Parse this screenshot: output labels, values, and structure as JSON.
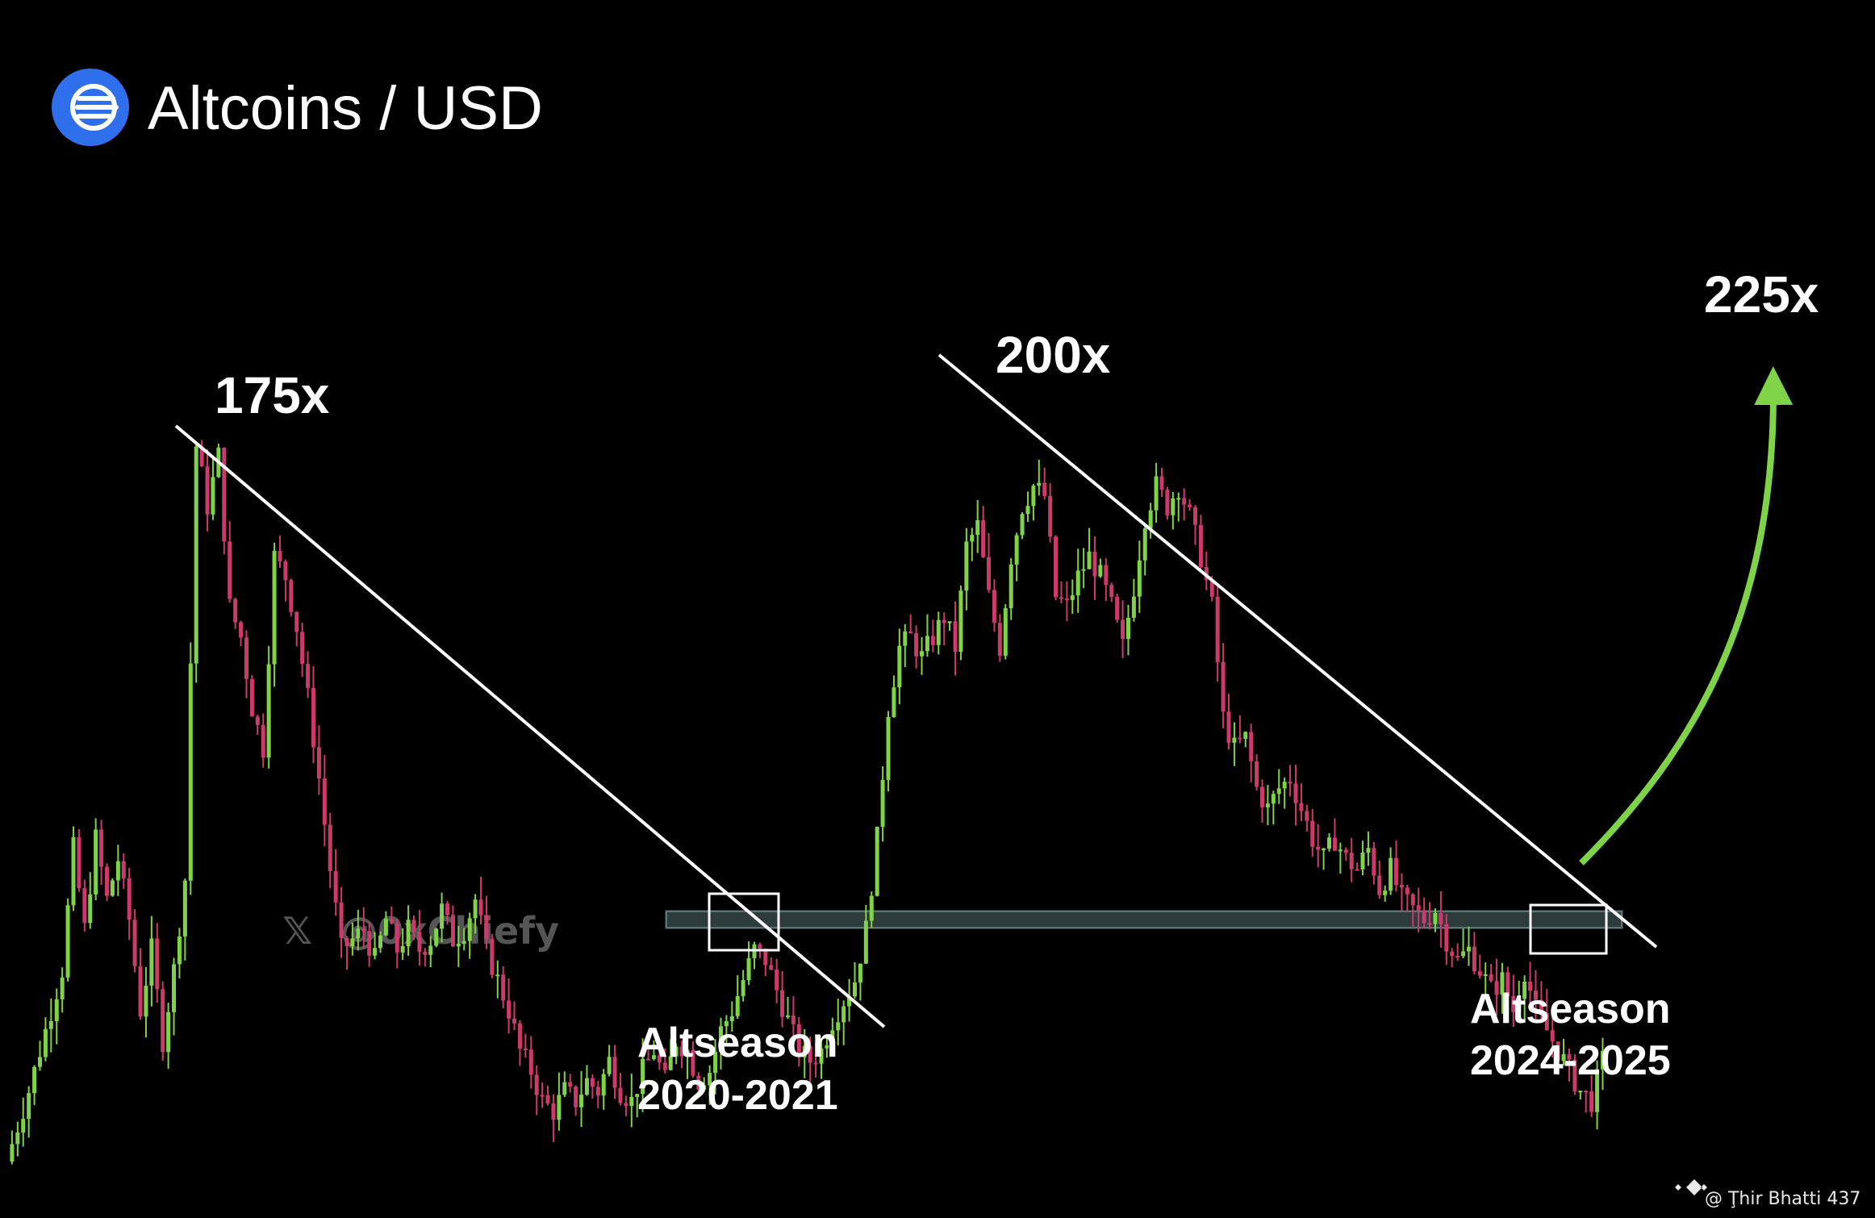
{
  "header": {
    "title": "Altcoins / USD",
    "icon": "altcoin-logo-icon",
    "icon_color": "#2f6fec"
  },
  "watermark": {
    "icon": "x-logo-icon",
    "handle": "@0xChiefy"
  },
  "credit": {
    "icon": "binance-logo-icon",
    "text": "@ Ţhir Bhatti 437"
  },
  "colors": {
    "background": "#000000",
    "up_candle": "#7ed348",
    "down_candle": "#cc3a6c",
    "trendline": "#ffffff",
    "support_band": "#5d7272",
    "projection_arrow": "#7ed348"
  },
  "chart_data": {
    "type": "candlestick",
    "title": "Altcoins / USD",
    "y_scale": "log",
    "grid": false,
    "legend": "none",
    "annotations": {
      "multipliers": [
        "175x",
        "200x",
        "225x"
      ],
      "altseasons": [
        {
          "line1": "Altseason",
          "line2": "2020-2021"
        },
        {
          "line1": "Altseason",
          "line2": "2024-2025"
        }
      ]
    },
    "price_path": [
      [
        0,
        0.0
      ],
      [
        2,
        0.35
      ],
      [
        3,
        0.55
      ],
      [
        4,
        0.75
      ],
      [
        5,
        0.95
      ],
      [
        6,
        1.55
      ],
      [
        7,
        1.15
      ],
      [
        8,
        1.6
      ],
      [
        9,
        1.3
      ],
      [
        10,
        1.5
      ],
      [
        11,
        1.2
      ],
      [
        12,
        0.75
      ],
      [
        13,
        1.05
      ],
      [
        14,
        0.6
      ],
      [
        15,
        0.95
      ],
      [
        16,
        1.4
      ],
      [
        17,
        3.55
      ],
      [
        18,
        3.25
      ],
      [
        19,
        3.5
      ],
      [
        20,
        2.75
      ],
      [
        21,
        2.6
      ],
      [
        22,
        2.25
      ],
      [
        23,
        2.05
      ],
      [
        24,
        3.0
      ],
      [
        25,
        2.9
      ],
      [
        26,
        2.65
      ],
      [
        27,
        2.3
      ],
      [
        28,
        1.9
      ],
      [
        29,
        1.45
      ],
      [
        30,
        1.05
      ],
      [
        31,
        1.1
      ],
      [
        32,
        1.15
      ],
      [
        33,
        1.0
      ],
      [
        34,
        1.2
      ],
      [
        35,
        1.05
      ],
      [
        36,
        1.15
      ],
      [
        37,
        1.05
      ],
      [
        38,
        1.1
      ],
      [
        39,
        1.25
      ],
      [
        40,
        1.1
      ],
      [
        41,
        1.15
      ],
      [
        42,
        1.3
      ],
      [
        43,
        1.05
      ],
      [
        44,
        0.9
      ],
      [
        45,
        0.75
      ],
      [
        46,
        0.55
      ],
      [
        47,
        0.45
      ],
      [
        48,
        0.3
      ],
      [
        49,
        0.25
      ],
      [
        50,
        0.35
      ],
      [
        51,
        0.3
      ],
      [
        52,
        0.4
      ],
      [
        53,
        0.35
      ],
      [
        54,
        0.5
      ],
      [
        55,
        0.35
      ],
      [
        56,
        0.3
      ],
      [
        57,
        0.45
      ],
      [
        58,
        0.55
      ],
      [
        59,
        0.4
      ],
      [
        60,
        0.6
      ],
      [
        61,
        0.55
      ],
      [
        62,
        0.4
      ],
      [
        63,
        0.45
      ],
      [
        64,
        0.65
      ],
      [
        65,
        0.75
      ],
      [
        66,
        0.9
      ],
      [
        67,
        1.05
      ],
      [
        68,
        1.0
      ],
      [
        69,
        0.85
      ],
      [
        70,
        0.7
      ],
      [
        71,
        0.55
      ],
      [
        72,
        0.5
      ],
      [
        73,
        0.55
      ],
      [
        74,
        0.7
      ],
      [
        75,
        0.8
      ],
      [
        76,
        0.9
      ],
      [
        77,
        1.15
      ],
      [
        78,
        1.6
      ],
      [
        79,
        2.25
      ],
      [
        80,
        2.55
      ],
      [
        81,
        2.6
      ],
      [
        82,
        2.5
      ],
      [
        83,
        2.6
      ],
      [
        84,
        2.7
      ],
      [
        85,
        2.55
      ],
      [
        86,
        3.05
      ],
      [
        87,
        3.15
      ],
      [
        88,
        2.8
      ],
      [
        89,
        2.55
      ],
      [
        90,
        3.0
      ],
      [
        91,
        3.25
      ],
      [
        92,
        3.35
      ],
      [
        93,
        3.3
      ],
      [
        94,
        2.8
      ],
      [
        95,
        2.75
      ],
      [
        96,
        2.9
      ],
      [
        97,
        3.0
      ],
      [
        98,
        2.9
      ],
      [
        99,
        2.75
      ],
      [
        100,
        2.55
      ],
      [
        101,
        2.85
      ],
      [
        102,
        3.2
      ],
      [
        103,
        3.35
      ],
      [
        104,
        3.25
      ],
      [
        105,
        3.35
      ],
      [
        106,
        3.2
      ],
      [
        107,
        3.0
      ],
      [
        108,
        2.75
      ],
      [
        109,
        2.2
      ],
      [
        110,
        2.05
      ],
      [
        111,
        2.1
      ],
      [
        112,
        1.85
      ],
      [
        113,
        1.75
      ],
      [
        114,
        1.85
      ],
      [
        115,
        1.9
      ],
      [
        116,
        1.75
      ],
      [
        117,
        1.6
      ],
      [
        118,
        1.5
      ],
      [
        119,
        1.6
      ],
      [
        120,
        1.5
      ],
      [
        121,
        1.45
      ],
      [
        122,
        1.55
      ],
      [
        123,
        1.35
      ],
      [
        124,
        1.45
      ],
      [
        125,
        1.3
      ],
      [
        126,
        1.25
      ],
      [
        127,
        1.2
      ],
      [
        128,
        1.25
      ],
      [
        129,
        1.1
      ],
      [
        130,
        1.0
      ],
      [
        131,
        1.05
      ],
      [
        132,
        0.95
      ],
      [
        133,
        0.85
      ],
      [
        134,
        0.9
      ],
      [
        135,
        0.75
      ],
      [
        136,
        0.95
      ],
      [
        137,
        0.75
      ],
      [
        138,
        0.65
      ],
      [
        139,
        0.55
      ],
      [
        140,
        0.45
      ],
      [
        141,
        0.35
      ],
      [
        142,
        0.3
      ],
      [
        143,
        0.5
      ]
    ]
  }
}
